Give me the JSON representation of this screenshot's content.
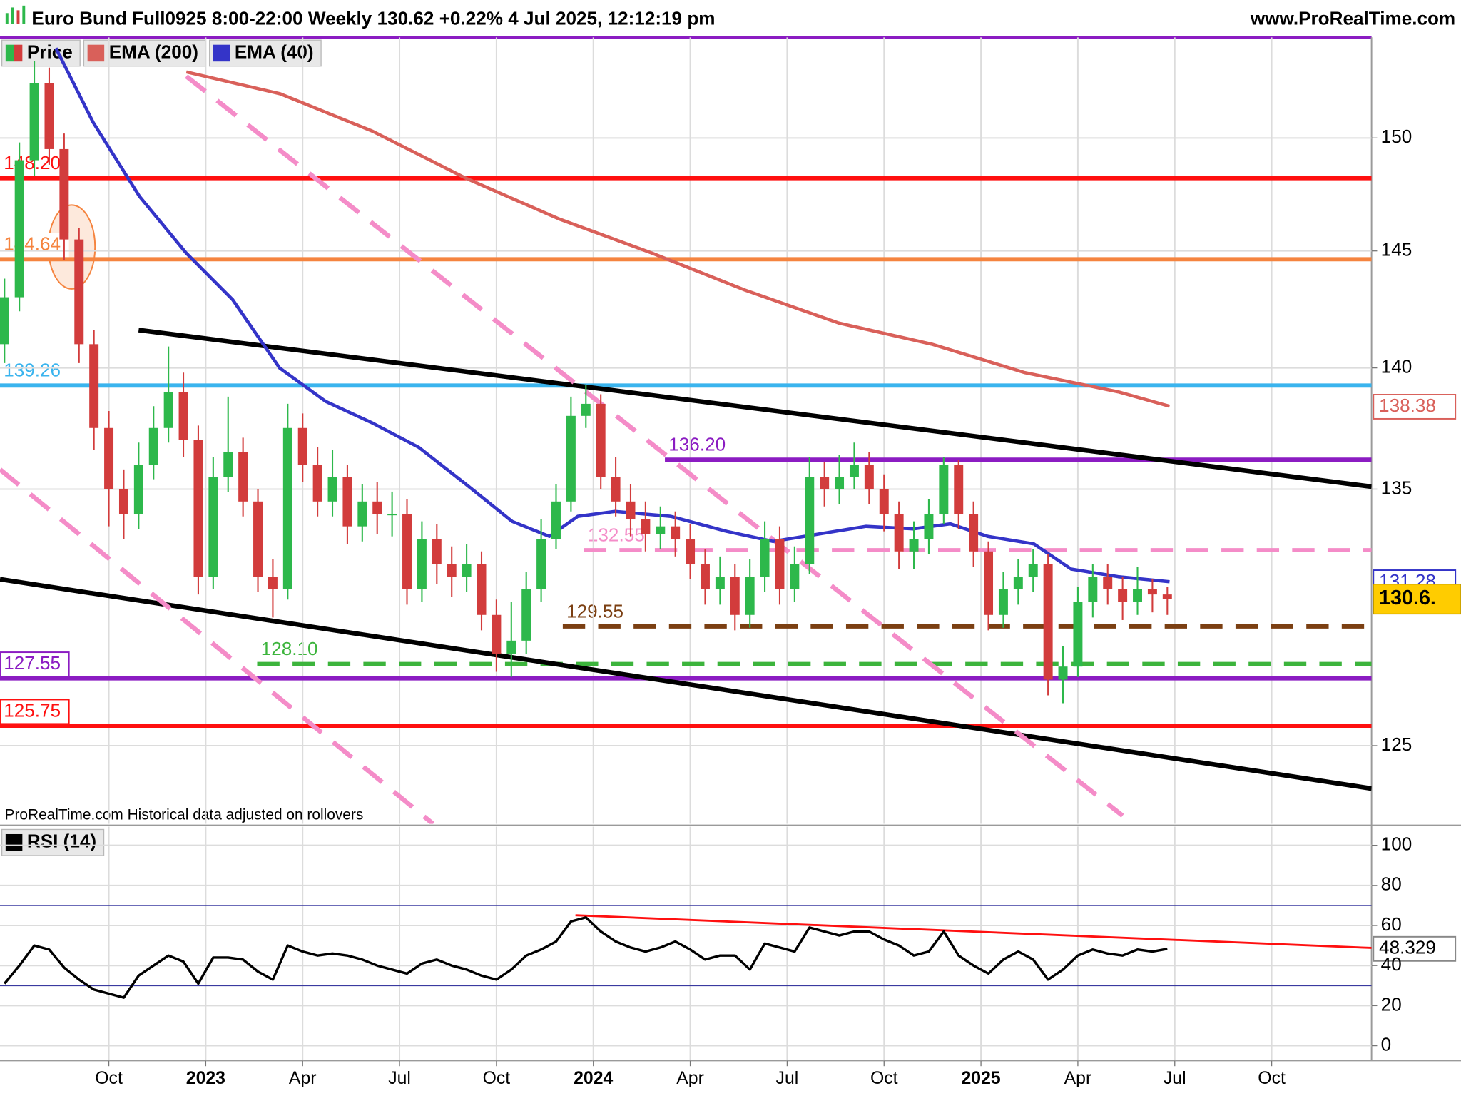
{
  "chart_data": [
    {
      "type": "candlestick",
      "title": "Euro Bund Full0925 8:00-22:00 Weekly 130.62 +0.22% 4 Jul 2025, 12:12:19 pm",
      "source": "www.ProRealTime.com",
      "note": "ProRealTime.com  Historical data adjusted on rollovers",
      "name": "Price",
      "up_color": "#2db84b",
      "down_color": "#d23c3c",
      "x": [
        -27,
        -25,
        -23,
        -21,
        -19,
        -17,
        -15,
        -13,
        -11,
        -9,
        -7,
        -5,
        -3,
        -1,
        1,
        3,
        5,
        7,
        9,
        11,
        13,
        15,
        17,
        19,
        21,
        23,
        25,
        27,
        29,
        31,
        33,
        35,
        37,
        39,
        41,
        43,
        45,
        47,
        49,
        51,
        53,
        55,
        57,
        59,
        61,
        63,
        65,
        67,
        69,
        71,
        73,
        75,
        77,
        79,
        81,
        83,
        85,
        87,
        89,
        91,
        93,
        95,
        97,
        99,
        101,
        103,
        105,
        107,
        109,
        111,
        113,
        115,
        117,
        119,
        121,
        123,
        125,
        127,
        129
      ],
      "open": [
        141,
        143,
        149,
        152.5,
        149.5,
        145.5,
        141,
        137.5,
        135,
        134,
        136,
        137.5,
        139,
        137,
        131.5,
        135.5,
        136.5,
        134.5,
        131.5,
        131,
        137.5,
        136,
        134.5,
        135.5,
        133.5,
        134.5,
        134,
        134,
        131,
        133,
        132,
        131.5,
        132,
        130,
        128.5,
        129,
        131,
        133,
        134.5,
        138,
        138.5,
        135.5,
        134.5,
        133.8,
        133.2,
        133.5,
        133,
        132,
        131,
        131.5,
        130,
        131.5,
        133,
        131,
        132,
        135.5,
        135,
        135.5,
        136,
        135,
        134,
        132.5,
        133,
        134,
        136,
        134,
        132.5,
        130,
        131,
        131.5,
        132,
        127.5,
        128,
        130.5,
        131.5,
        131,
        130.5,
        131,
        130.8
      ],
      "high": [
        143.8,
        149.8,
        153.5,
        153.2,
        150.2,
        146,
        141.6,
        138.2,
        135.8,
        136.9,
        138.4,
        140.9,
        139.8,
        137.6,
        136.3,
        138.8,
        137.1,
        135,
        132.2,
        138.5,
        138.1,
        136.7,
        136.6,
        136,
        135.2,
        135.3,
        134.9,
        134.6,
        133.7,
        133.6,
        132.7,
        132.8,
        132.5,
        130.6,
        130.5,
        131.7,
        133.8,
        135.2,
        138.8,
        139.3,
        138.9,
        136.3,
        135.2,
        134.5,
        134.3,
        134.1,
        133.6,
        132.6,
        132.3,
        132,
        132.2,
        133.7,
        133.5,
        132.7,
        136.3,
        136.1,
        136.4,
        136.9,
        136.5,
        135.6,
        134.5,
        133.7,
        134.6,
        136.3,
        136.2,
        134.5,
        132.9,
        131.7,
        132.2,
        132.6,
        132.4,
        128.8,
        131.1,
        132,
        132,
        131.5,
        131.9,
        131.4,
        131.1
      ],
      "low": [
        140.2,
        142.4,
        148.3,
        148.8,
        144.6,
        140.2,
        136.6,
        133.5,
        133,
        133.4,
        135.4,
        136.9,
        136.3,
        130.8,
        131,
        134.9,
        133.9,
        130.9,
        129.9,
        130.6,
        135.3,
        133.9,
        133.9,
        132.8,
        132.9,
        133.2,
        133.1,
        130.4,
        130.5,
        131.2,
        130.7,
        130.9,
        129.4,
        127.8,
        127.6,
        128.5,
        130.5,
        132.6,
        134.1,
        137.5,
        135,
        133.9,
        133.1,
        132.5,
        132.6,
        132.3,
        131.4,
        130.4,
        130.4,
        129.4,
        129.5,
        130.9,
        130.4,
        130.5,
        131.6,
        134.3,
        134.4,
        135,
        134.4,
        133.3,
        131.8,
        131.8,
        132.4,
        133.6,
        133.4,
        131.9,
        129.4,
        129.5,
        130.4,
        130.9,
        126.9,
        126.6,
        127.6,
        129.9,
        130.4,
        129.8,
        130,
        130.1,
        130
      ],
      "close": [
        143,
        149,
        152.5,
        149.5,
        145.5,
        141,
        137.5,
        135,
        134,
        136,
        137.5,
        139,
        137,
        131.5,
        135.5,
        136.5,
        134.5,
        131.5,
        131,
        137.5,
        136,
        134.5,
        135.5,
        133.5,
        134.5,
        134,
        134,
        131,
        133,
        132,
        131.5,
        132,
        130,
        128.5,
        129,
        131,
        133,
        134.5,
        138,
        138.5,
        135.5,
        134.5,
        133.8,
        133.2,
        133.5,
        133,
        132,
        131,
        131.5,
        130,
        131.5,
        133,
        131,
        132,
        135.5,
        135,
        135.5,
        136,
        135,
        134,
        132.5,
        133,
        134,
        136,
        134,
        132.5,
        130,
        131,
        131.5,
        132,
        127.5,
        128,
        130.5,
        131.5,
        131,
        130.5,
        131,
        130.8,
        130.62
      ],
      "series": [
        {
          "name": "EMA (200)",
          "color": "#d9605a",
          "x": [
            -2.6,
            10,
            22.4,
            34.9,
            47.4,
            59.9,
            72.4,
            84.9,
            97.4,
            109.9,
            122.4,
            129.3
          ],
          "values": [
            153,
            152,
            150.3,
            148.2,
            146.4,
            144.9,
            143.3,
            141.9,
            141,
            139.8,
            139,
            138.4
          ],
          "last_value": 138.38
        },
        {
          "name": "EMA (40)",
          "color": "#3434c8",
          "x": [
            -20.1,
            -15.1,
            -8.9,
            -2.6,
            3.6,
            9.9,
            16.1,
            22.4,
            28.6,
            34.9,
            41.1,
            46.1,
            49.9,
            54.9,
            62.4,
            69.9,
            76.1,
            82.4,
            88.6,
            94.9,
            99.9,
            104.9,
            111.1,
            116.1,
            122.4,
            129.3
          ],
          "values": [
            154.1,
            150.7,
            147.4,
            144.9,
            142.9,
            140,
            138.6,
            137.7,
            136.7,
            135.2,
            133.7,
            133.1,
            133.9,
            134.1,
            133.9,
            133.3,
            132.9,
            133.2,
            133.5,
            133.4,
            133.6,
            133.1,
            132.8,
            131.8,
            131.5,
            131.3
          ],
          "last_value": 131.28
        }
      ],
      "last_price": {
        "value": 130.62,
        "label": "130.6."
      },
      "levels": [
        {
          "value": 148.2,
          "label": "148.20",
          "color": "#ff1010"
        },
        {
          "value": 144.64,
          "label": "144.64",
          "color": "#f5843f"
        },
        {
          "value": 139.26,
          "label": "139.26",
          "color": "#3ab4ee"
        },
        {
          "value": 136.2,
          "label": "136.20",
          "color": "#8b1cc2",
          "from": 61.6
        },
        {
          "value": 132.55,
          "label": "132.55",
          "color": "#f48cc8",
          "from": 50.75,
          "dashed": true
        },
        {
          "value": 129.55,
          "label": "129.55",
          "color": "#7b3f12",
          "from": 47.9,
          "dashed": true
        },
        {
          "value": 128.1,
          "label": "128.10",
          "color": "#3cb43c",
          "from": 6.9,
          "dashed": true
        },
        {
          "value": 127.55,
          "label": "127.55",
          "color": "#8b1cc2",
          "boxed": true
        },
        {
          "value": 125.75,
          "label": "125.75",
          "color": "#ff1010",
          "boxed": true
        }
      ],
      "trendlines": [
        {
          "color": "#000000",
          "x": [
            -9,
            156.4
          ],
          "values": [
            141.6,
            135.1
          ]
        },
        {
          "color": "#000000",
          "x": [
            -27.6,
            156.4
          ],
          "values": [
            131.4,
            123.4
          ]
        },
        {
          "color": "#f48cc8",
          "dashed": true,
          "x": [
            -2.6,
            123
          ],
          "values": [
            152.8,
            122.4
          ]
        },
        {
          "color": "#f48cc8",
          "dashed": true,
          "x": [
            -27.6,
            30.5
          ],
          "values": [
            135.8,
            122.1
          ]
        }
      ],
      "xlim": [
        -27.6,
        156.4
      ],
      "ylim": [
        122.1,
        154.6
      ],
      "yticks": [
        125,
        135,
        140,
        145,
        150
      ],
      "log_scale": true,
      "grid": true
    },
    {
      "type": "line",
      "x": [
        -27,
        -25,
        -23,
        -21,
        -19,
        -17,
        -15,
        -13,
        -11,
        -9,
        -7,
        -5,
        -3,
        -1,
        1,
        3,
        5,
        7,
        9,
        11,
        13,
        15,
        17,
        19,
        21,
        23,
        25,
        27,
        29,
        31,
        33,
        35,
        37,
        39,
        41,
        43,
        45,
        47,
        49,
        51,
        53,
        55,
        57,
        59,
        61,
        63,
        65,
        67,
        69,
        71,
        73,
        75,
        77,
        79,
        81,
        83,
        85,
        87,
        89,
        91,
        93,
        95,
        97,
        99,
        101,
        103,
        105,
        107,
        109,
        111,
        113,
        115,
        117,
        119,
        121,
        123,
        125,
        127,
        129
      ],
      "series": [
        {
          "name": "RSI (14)",
          "color": "#000000",
          "values": [
            31,
            40,
            50,
            48,
            39,
            33,
            28,
            26,
            24,
            35,
            40,
            45,
            42,
            31,
            44,
            44,
            43,
            37,
            33,
            50,
            47,
            45,
            46,
            45,
            43,
            40,
            38,
            36,
            41,
            43,
            40,
            38,
            35,
            33,
            38,
            45,
            48,
            52,
            62,
            64,
            57,
            52,
            49,
            47,
            49,
            52,
            48,
            43,
            45,
            45,
            38,
            51,
            49,
            47,
            59,
            57,
            55,
            57,
            57,
            53,
            50,
            45,
            47,
            57,
            45,
            40,
            36,
            43,
            47,
            43,
            33,
            38,
            45,
            48,
            46,
            45,
            48,
            47,
            48.329
          ],
          "last_value": 48.329
        }
      ],
      "bands": [
        30,
        70
      ],
      "band_color": "#3a3aa0",
      "trendlines": [
        {
          "color": "#ff1010",
          "x": [
            49.6,
            156.4
          ],
          "values": [
            65.1,
            48.8
          ]
        }
      ],
      "xlim": [
        -27.6,
        156.4
      ],
      "xticks": [
        {
          "value": -13,
          "label": "Oct"
        },
        {
          "value": 0,
          "label": "2023"
        },
        {
          "value": 13,
          "label": "Apr"
        },
        {
          "value": 26,
          "label": "Jul"
        },
        {
          "value": 39,
          "label": "Oct"
        },
        {
          "value": 52,
          "label": "2024"
        },
        {
          "value": 65,
          "label": "Apr"
        },
        {
          "value": 78,
          "label": "Jul"
        },
        {
          "value": 91,
          "label": "Oct"
        },
        {
          "value": 104,
          "label": "2025"
        },
        {
          "value": 117,
          "label": "Apr"
        },
        {
          "value": 130,
          "label": "Jul"
        },
        {
          "value": 143,
          "label": "Oct"
        }
      ],
      "ylim": [
        -7.4,
        109.3
      ],
      "yticks": [
        0,
        20,
        40,
        60,
        80,
        100
      ],
      "grid": true
    }
  ]
}
